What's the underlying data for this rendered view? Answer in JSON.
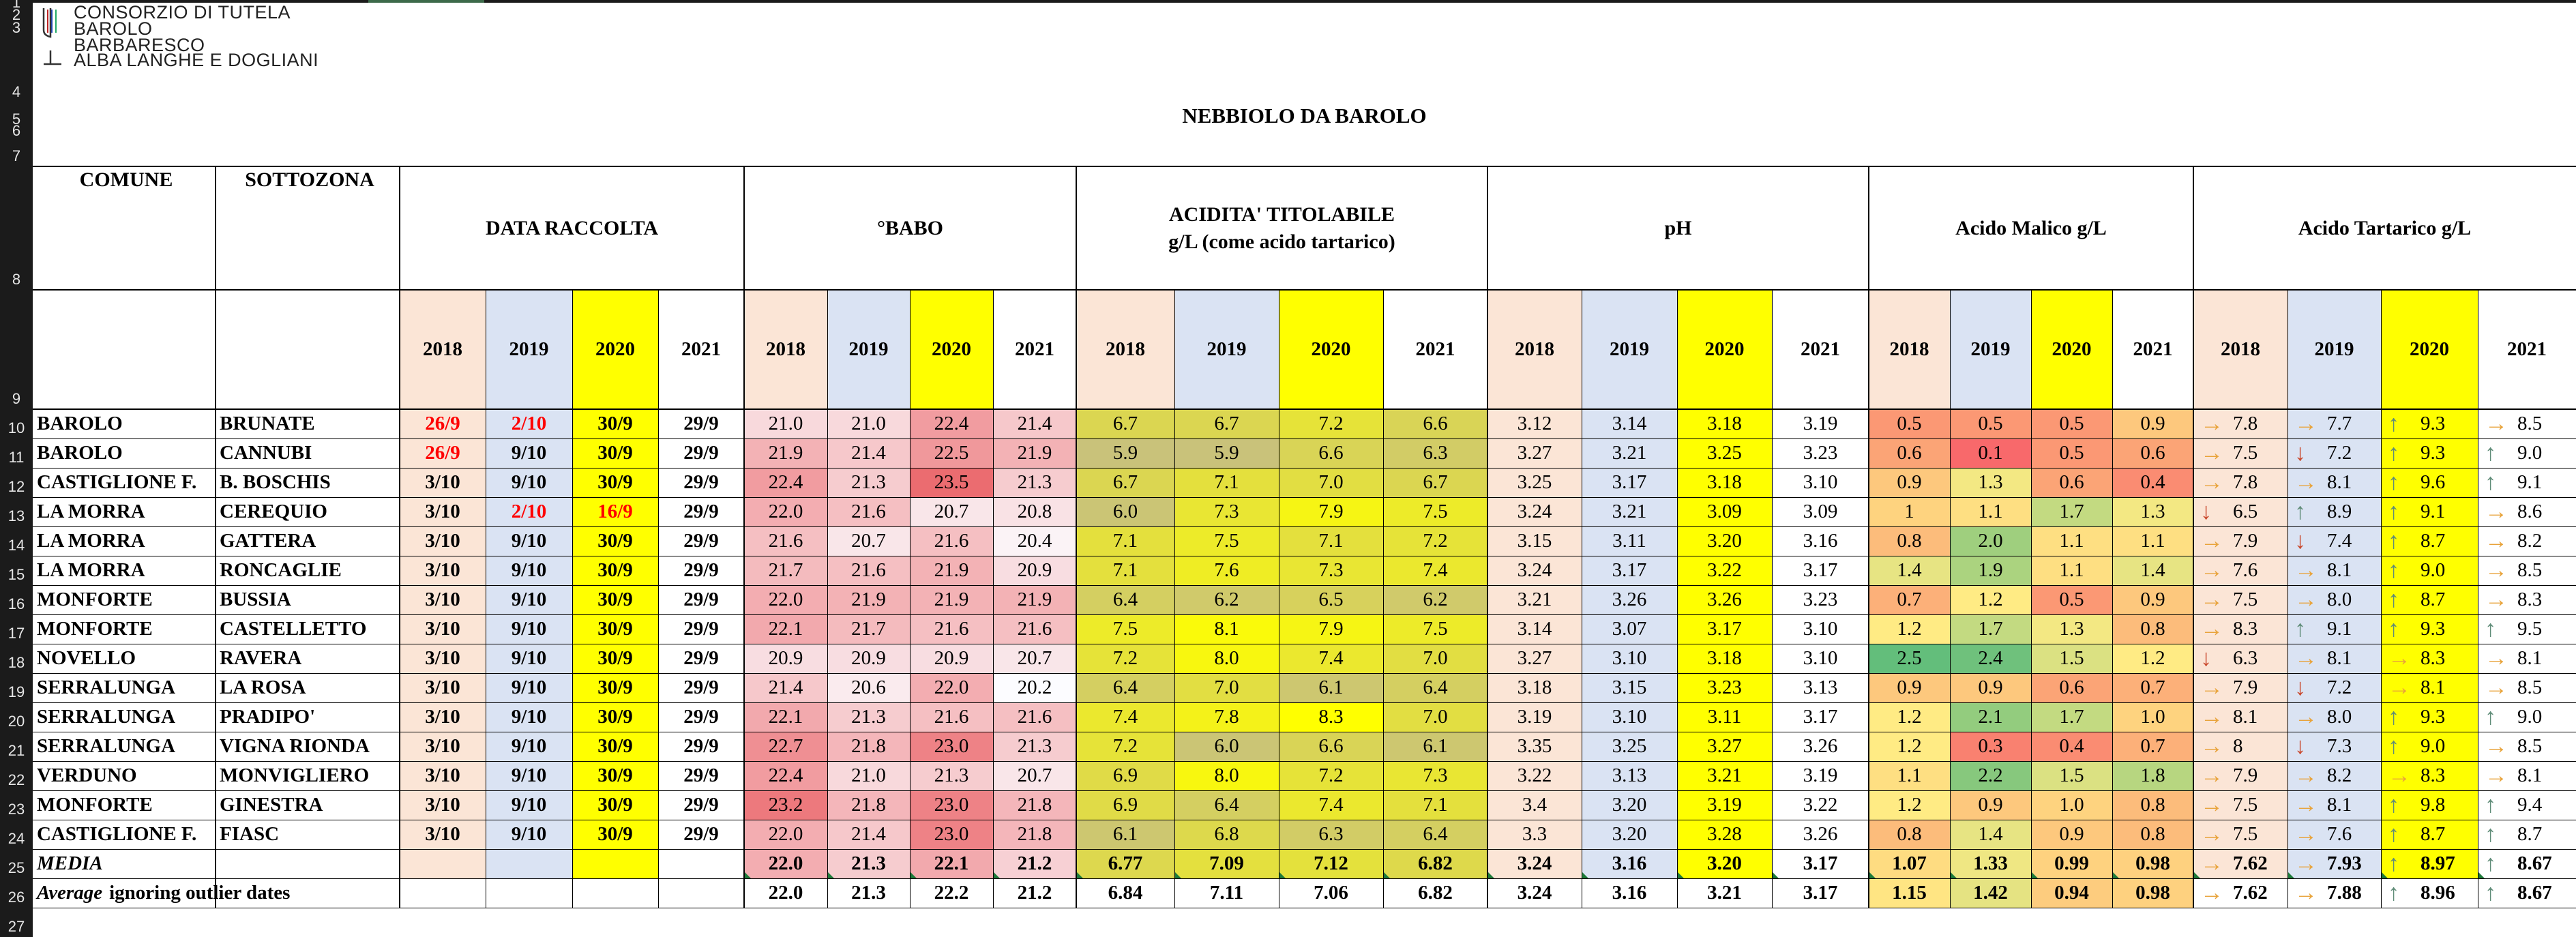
{
  "logo": {
    "lines": [
      "CONSORZIO DI TUTELA",
      "BAROLO",
      "BARBARESCO",
      "ALBA LANGHE E DOGLIANI"
    ],
    "icon": "consorzio-emblem-icon"
  },
  "row_numbers": [
    "1",
    "2",
    "3",
    "4",
    "5",
    "6",
    "7",
    "8",
    "9",
    "10",
    "11",
    "12",
    "13",
    "14",
    "15",
    "16",
    "17",
    "18",
    "19",
    "20",
    "21",
    "22",
    "23",
    "24",
    "25",
    "26",
    "27"
  ],
  "title": "NEBBIOLO DA BAROLO",
  "headers": {
    "comune": "COMUNE",
    "sottozona": "SOTTOZONA",
    "data_raccolta": "DATA RACCOLTA",
    "babo": "°BABO",
    "acidita_1": "ACIDITA' TITOLABILE",
    "acidita_2": "g/L (come acido tartarico)",
    "ph": "pH",
    "malico": "Acido Malico g/L",
    "tartarico": "Acido Tartarico g/L",
    "years": [
      "2018",
      "2019",
      "2020",
      "2021"
    ]
  },
  "colors": {
    "year_2018_fill": "#fbe5d6",
    "year_2019_fill": "#dae3f3",
    "year_2020_fill": "#ffff00",
    "date_red": "#ff0000",
    "arrow_up": "#5f8c78",
    "arrow_right": "#e8a33a",
    "arrow_down": "#c9472b",
    "grid_line": "#000000",
    "comment_marker": "#1e7b3a"
  },
  "rows": [
    {
      "comune": "BAROLO",
      "sottozona": "BRUNATE",
      "dates": [
        "26/9",
        "2/10",
        "30/9",
        "29/9"
      ],
      "date_red": [
        true,
        true,
        false,
        false
      ],
      "babo": [
        "21.0",
        "21.0",
        "22.4",
        "21.4"
      ],
      "acid": [
        "6.7",
        "6.7",
        "7.2",
        "6.6"
      ],
      "ph": [
        "3.12",
        "3.14",
        "3.18",
        "3.19"
      ],
      "malico": [
        "0.5",
        "0.5",
        "0.5",
        "0.9"
      ],
      "tart": [
        "7.8",
        "7.7",
        "9.3",
        "8.5"
      ],
      "tart_dir": [
        "right",
        "right",
        "up",
        "right"
      ]
    },
    {
      "comune": "BAROLO",
      "sottozona": "CANNUBI",
      "dates": [
        "26/9",
        "9/10",
        "30/9",
        "29/9"
      ],
      "date_red": [
        true,
        false,
        false,
        false
      ],
      "babo": [
        "21.9",
        "21.4",
        "22.5",
        "21.9"
      ],
      "acid": [
        "5.9",
        "5.9",
        "6.6",
        "6.3"
      ],
      "ph": [
        "3.27",
        "3.21",
        "3.25",
        "3.23"
      ],
      "malico": [
        "0.6",
        "0.1",
        "0.5",
        "0.6"
      ],
      "tart": [
        "7.5",
        "7.2",
        "9.3",
        "9.0"
      ],
      "tart_dir": [
        "right",
        "down",
        "up",
        "up"
      ]
    },
    {
      "comune": "CASTIGLIONE F.",
      "sottozona": "B. BOSCHIS",
      "dates": [
        "3/10",
        "9/10",
        "30/9",
        "29/9"
      ],
      "date_red": [
        false,
        false,
        false,
        false
      ],
      "babo": [
        "22.4",
        "21.3",
        "23.5",
        "21.3"
      ],
      "acid": [
        "6.7",
        "7.1",
        "7.0",
        "6.7"
      ],
      "ph": [
        "3.25",
        "3.17",
        "3.18",
        "3.10"
      ],
      "malico": [
        "0.9",
        "1.3",
        "0.6",
        "0.4"
      ],
      "tart": [
        "7.8",
        "8.1",
        "9.6",
        "9.1"
      ],
      "tart_dir": [
        "right",
        "right",
        "up",
        "up"
      ]
    },
    {
      "comune": "LA MORRA",
      "sottozona": "CEREQUIO",
      "dates": [
        "3/10",
        "2/10",
        "16/9",
        "29/9"
      ],
      "date_red": [
        false,
        true,
        true,
        false
      ],
      "babo": [
        "22.0",
        "21.6",
        "20.7",
        "20.8"
      ],
      "acid": [
        "6.0",
        "7.3",
        "7.9",
        "7.5"
      ],
      "ph": [
        "3.24",
        "3.21",
        "3.09",
        "3.09"
      ],
      "malico": [
        "1",
        "1.1",
        "1.7",
        "1.3"
      ],
      "tart": [
        "6.5",
        "8.9",
        "9.1",
        "8.6"
      ],
      "tart_dir": [
        "down",
        "up",
        "up",
        "right"
      ]
    },
    {
      "comune": "LA MORRA",
      "sottozona": "GATTERA",
      "dates": [
        "3/10",
        "9/10",
        "30/9",
        "29/9"
      ],
      "date_red": [
        false,
        false,
        false,
        false
      ],
      "babo": [
        "21.6",
        "20.7",
        "21.6",
        "20.4"
      ],
      "acid": [
        "7.1",
        "7.5",
        "7.1",
        "7.2"
      ],
      "ph": [
        "3.15",
        "3.11",
        "3.20",
        "3.16"
      ],
      "malico": [
        "0.8",
        "2.0",
        "1.1",
        "1.1"
      ],
      "tart": [
        "7.9",
        "7.4",
        "8.7",
        "8.2"
      ],
      "tart_dir": [
        "right",
        "down",
        "up",
        "right"
      ]
    },
    {
      "comune": "LA MORRA",
      "sottozona": "RONCAGLIE",
      "dates": [
        "3/10",
        "9/10",
        "30/9",
        "29/9"
      ],
      "date_red": [
        false,
        false,
        false,
        false
      ],
      "babo": [
        "21.7",
        "21.6",
        "21.9",
        "20.9"
      ],
      "acid": [
        "7.1",
        "7.6",
        "7.3",
        "7.4"
      ],
      "ph": [
        "3.24",
        "3.17",
        "3.22",
        "3.17"
      ],
      "malico": [
        "1.4",
        "1.9",
        "1.1",
        "1.4"
      ],
      "tart": [
        "7.6",
        "8.1",
        "9.0",
        "8.5"
      ],
      "tart_dir": [
        "right",
        "right",
        "up",
        "right"
      ]
    },
    {
      "comune": "MONFORTE",
      "sottozona": "BUSSIA",
      "dates": [
        "3/10",
        "9/10",
        "30/9",
        "29/9"
      ],
      "date_red": [
        false,
        false,
        false,
        false
      ],
      "babo": [
        "22.0",
        "21.9",
        "21.9",
        "21.9"
      ],
      "acid": [
        "6.4",
        "6.2",
        "6.5",
        "6.2"
      ],
      "ph": [
        "3.21",
        "3.26",
        "3.26",
        "3.23"
      ],
      "malico": [
        "0.7",
        "1.2",
        "0.5",
        "0.9"
      ],
      "tart": [
        "7.5",
        "8.0",
        "8.7",
        "8.3"
      ],
      "tart_dir": [
        "right",
        "right",
        "up",
        "right"
      ]
    },
    {
      "comune": "MONFORTE",
      "sottozona": "CASTELLETTO",
      "dates": [
        "3/10",
        "9/10",
        "30/9",
        "29/9"
      ],
      "date_red": [
        false,
        false,
        false,
        false
      ],
      "babo": [
        "22.1",
        "21.7",
        "21.6",
        "21.6"
      ],
      "acid": [
        "7.5",
        "8.1",
        "7.9",
        "7.5"
      ],
      "ph": [
        "3.14",
        "3.07",
        "3.17",
        "3.10"
      ],
      "malico": [
        "1.2",
        "1.7",
        "1.3",
        "0.8"
      ],
      "tart": [
        "8.3",
        "9.1",
        "9.3",
        "9.5"
      ],
      "tart_dir": [
        "right",
        "up",
        "up",
        "up"
      ]
    },
    {
      "comune": "NOVELLO",
      "sottozona": "RAVERA",
      "dates": [
        "3/10",
        "9/10",
        "30/9",
        "29/9"
      ],
      "date_red": [
        false,
        false,
        false,
        false
      ],
      "babo": [
        "20.9",
        "20.9",
        "20.9",
        "20.7"
      ],
      "acid": [
        "7.2",
        "8.0",
        "7.4",
        "7.0"
      ],
      "ph": [
        "3.27",
        "3.10",
        "3.18",
        "3.10"
      ],
      "malico": [
        "2.5",
        "2.4",
        "1.5",
        "1.2"
      ],
      "tart": [
        "6.3",
        "8.1",
        "8.3",
        "8.1"
      ],
      "tart_dir": [
        "down",
        "right",
        "right",
        "right"
      ]
    },
    {
      "comune": "SERRALUNGA",
      "sottozona": "LA ROSA",
      "dates": [
        "3/10",
        "9/10",
        "30/9",
        "29/9"
      ],
      "date_red": [
        false,
        false,
        false,
        false
      ],
      "babo": [
        "21.4",
        "20.6",
        "22.0",
        "20.2"
      ],
      "acid": [
        "6.4",
        "7.0",
        "6.1",
        "6.4"
      ],
      "ph": [
        "3.18",
        "3.15",
        "3.23",
        "3.13"
      ],
      "malico": [
        "0.9",
        "0.9",
        "0.6",
        "0.7"
      ],
      "tart": [
        "7.9",
        "7.2",
        "8.1",
        "8.5"
      ],
      "tart_dir": [
        "right",
        "down",
        "right",
        "right"
      ]
    },
    {
      "comune": "SERRALUNGA",
      "sottozona": "PRADIPO'",
      "dates": [
        "3/10",
        "9/10",
        "30/9",
        "29/9"
      ],
      "date_red": [
        false,
        false,
        false,
        false
      ],
      "babo": [
        "22.1",
        "21.3",
        "21.6",
        "21.6"
      ],
      "acid": [
        "7.4",
        "7.8",
        "8.3",
        "7.0"
      ],
      "ph": [
        "3.19",
        "3.10",
        "3.11",
        "3.17"
      ],
      "malico": [
        "1.2",
        "2.1",
        "1.7",
        "1.0"
      ],
      "tart": [
        "8.1",
        "8.0",
        "9.3",
        "9.0"
      ],
      "tart_dir": [
        "right",
        "right",
        "up",
        "up"
      ]
    },
    {
      "comune": "SERRALUNGA",
      "sottozona": "VIGNA RIONDA",
      "dates": [
        "3/10",
        "9/10",
        "30/9",
        "29/9"
      ],
      "date_red": [
        false,
        false,
        false,
        false
      ],
      "babo": [
        "22.7",
        "21.8",
        "23.0",
        "21.3"
      ],
      "acid": [
        "7.2",
        "6.0",
        "6.6",
        "6.1"
      ],
      "ph": [
        "3.35",
        "3.25",
        "3.27",
        "3.26"
      ],
      "malico": [
        "1.2",
        "0.3",
        "0.4",
        "0.7"
      ],
      "tart": [
        "8",
        "7.3",
        "9.0",
        "8.5"
      ],
      "tart_dir": [
        "right",
        "down",
        "up",
        "right"
      ]
    },
    {
      "comune": "VERDUNO",
      "sottozona": "MONVIGLIERO",
      "dates": [
        "3/10",
        "9/10",
        "30/9",
        "29/9"
      ],
      "date_red": [
        false,
        false,
        false,
        false
      ],
      "babo": [
        "22.4",
        "21.0",
        "21.3",
        "20.7"
      ],
      "acid": [
        "6.9",
        "8.0",
        "7.2",
        "7.3"
      ],
      "ph": [
        "3.22",
        "3.13",
        "3.21",
        "3.19"
      ],
      "malico": [
        "1.1",
        "2.2",
        "1.5",
        "1.8"
      ],
      "tart": [
        "7.9",
        "8.2",
        "8.3",
        "8.1"
      ],
      "tart_dir": [
        "right",
        "right",
        "right",
        "right"
      ]
    },
    {
      "comune": "MONFORTE",
      "sottozona": "GINESTRA",
      "dates": [
        "3/10",
        "9/10",
        "30/9",
        "29/9"
      ],
      "date_red": [
        false,
        false,
        false,
        false
      ],
      "babo": [
        "23.2",
        "21.8",
        "23.0",
        "21.8"
      ],
      "acid": [
        "6.9",
        "6.4",
        "7.4",
        "7.1"
      ],
      "ph": [
        "3.4",
        "3.20",
        "3.19",
        "3.22"
      ],
      "malico": [
        "1.2",
        "0.9",
        "1.0",
        "0.8"
      ],
      "tart": [
        "7.5",
        "8.1",
        "9.8",
        "9.4"
      ],
      "tart_dir": [
        "right",
        "right",
        "up",
        "up"
      ]
    },
    {
      "comune": "CASTIGLIONE F.",
      "sottozona": "FIASC",
      "dates": [
        "3/10",
        "9/10",
        "30/9",
        "29/9"
      ],
      "date_red": [
        false,
        false,
        false,
        false
      ],
      "babo": [
        "22.0",
        "21.4",
        "23.0",
        "21.8"
      ],
      "acid": [
        "6.1",
        "6.8",
        "6.3",
        "6.4"
      ],
      "ph": [
        "3.3",
        "3.20",
        "3.28",
        "3.26"
      ],
      "malico": [
        "0.8",
        "1.4",
        "0.9",
        "0.8"
      ],
      "tart": [
        "7.5",
        "7.6",
        "8.7",
        "8.7"
      ],
      "tart_dir": [
        "right",
        "right",
        "up",
        "up"
      ]
    }
  ],
  "media": {
    "label": "MEDIA",
    "babo": [
      "22.0",
      "21.3",
      "22.1",
      "21.2"
    ],
    "acid": [
      "6.77",
      "7.09",
      "7.12",
      "6.82"
    ],
    "ph": [
      "3.24",
      "3.16",
      "3.20",
      "3.17"
    ],
    "malico": [
      "1.07",
      "1.33",
      "0.99",
      "0.98"
    ],
    "tart": [
      "7.62",
      "7.93",
      "8.97",
      "8.67"
    ],
    "tart_dir": [
      "right",
      "right",
      "up",
      "up"
    ]
  },
  "average": {
    "label_italic": "Average",
    "label_rest": "ignoring outlier dates",
    "babo": [
      "22.0",
      "21.3",
      "22.2",
      "21.2"
    ],
    "acid": [
      "6.84",
      "7.11",
      "7.06",
      "6.82"
    ],
    "ph": [
      "3.24",
      "3.16",
      "3.21",
      "3.17"
    ],
    "malico": [
      "1.15",
      "1.42",
      "0.94",
      "0.98"
    ],
    "tart": [
      "7.62",
      "7.88",
      "8.96",
      "8.67"
    ],
    "tart_dir": [
      "right",
      "right",
      "up",
      "up"
    ]
  }
}
